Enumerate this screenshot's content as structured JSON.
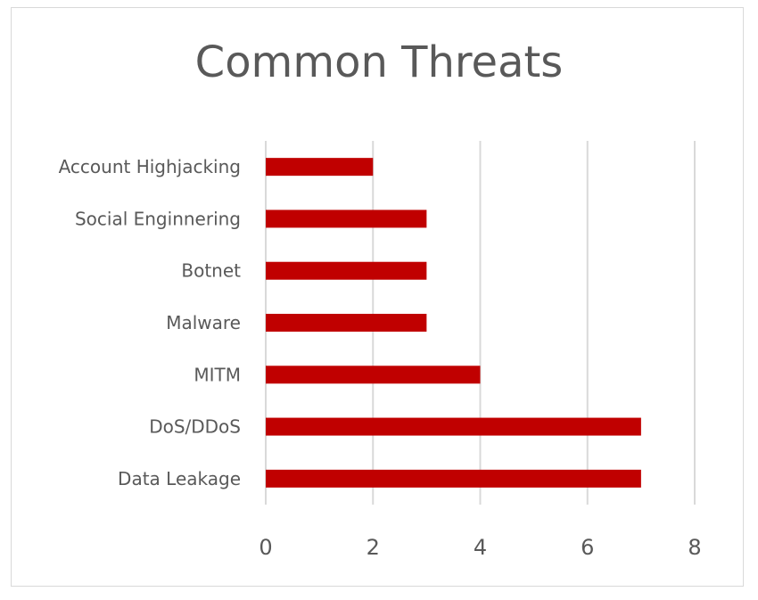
{
  "chart_data": {
    "type": "bar",
    "orientation": "horizontal",
    "title": "Common Threats",
    "categories": [
      "Account Highjacking",
      "Social Enginnering",
      "Botnet",
      "Malware",
      "MITM",
      "DoS/DDoS",
      "Data Leakage"
    ],
    "values": [
      2,
      3,
      3,
      3,
      4,
      7,
      7
    ],
    "xlim": [
      0,
      8
    ],
    "x_ticks": [
      0,
      2,
      4,
      6,
      8
    ],
    "grid": "vertical",
    "bar_color": "#c00000",
    "grid_color": "#d9d9d9",
    "text_color": "#595959"
  }
}
